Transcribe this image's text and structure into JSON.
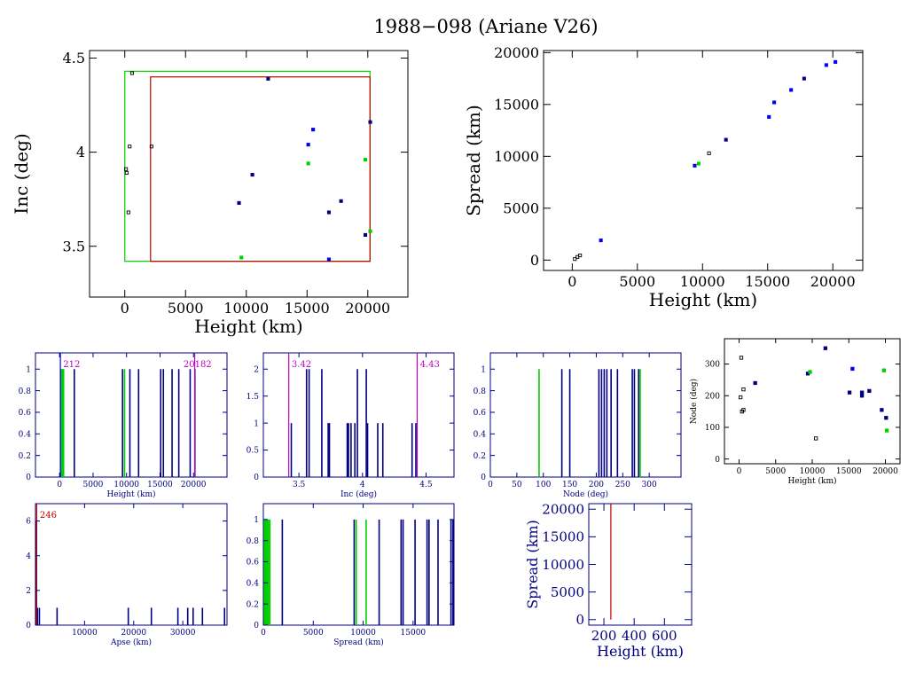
{
  "title": "1988−098 (Ariane V26)",
  "colors": {
    "black": "#000000",
    "navy": "#000080",
    "blue": "#0000ff",
    "green": "#00d000",
    "red": "#c00000",
    "magenta": "#c000c0"
  },
  "chart_data": [
    {
      "id": "inc-vs-height",
      "type": "scatter",
      "xlabel": "Height (km)",
      "ylabel": "Inc (deg)",
      "xlim": [
        -2900,
        23300
      ],
      "ylim": [
        3.23,
        4.54
      ],
      "xticks": [
        0,
        5000,
        10000,
        15000,
        20000
      ],
      "yticks": [
        3.5,
        4,
        4.5
      ],
      "ytick_labels": [
        "3.5",
        "4",
        "4.5"
      ],
      "regions": [
        {
          "color": "green",
          "x": [
            0,
            20182
          ],
          "y": [
            3.42,
            4.43
          ]
        },
        {
          "color": "red",
          "x": [
            2120,
            20182
          ],
          "y": [
            3.42,
            4.4
          ]
        }
      ],
      "points": [
        {
          "x": 600,
          "y": 4.42,
          "c": "black"
        },
        {
          "x": 11800,
          "y": 4.39,
          "c": "navy"
        },
        {
          "x": 15500,
          "y": 4.12,
          "c": "blue"
        },
        {
          "x": 20200,
          "y": 4.16,
          "c": "navy"
        },
        {
          "x": 400,
          "y": 4.03,
          "c": "black"
        },
        {
          "x": 2200,
          "y": 4.03,
          "c": "black"
        },
        {
          "x": 15100,
          "y": 4.04,
          "c": "blue"
        },
        {
          "x": 100,
          "y": 3.91,
          "c": "black"
        },
        {
          "x": 150,
          "y": 3.89,
          "c": "black"
        },
        {
          "x": 10500,
          "y": 3.88,
          "c": "navy"
        },
        {
          "x": 15100,
          "y": 3.94,
          "c": "green"
        },
        {
          "x": 19800,
          "y": 3.96,
          "c": "green"
        },
        {
          "x": 9400,
          "y": 3.73,
          "c": "navy"
        },
        {
          "x": 17800,
          "y": 3.74,
          "c": "navy"
        },
        {
          "x": 300,
          "y": 3.68,
          "c": "black"
        },
        {
          "x": 16800,
          "y": 3.68,
          "c": "navy"
        },
        {
          "x": 19800,
          "y": 3.56,
          "c": "navy"
        },
        {
          "x": 20200,
          "y": 3.58,
          "c": "green"
        },
        {
          "x": 9600,
          "y": 3.44,
          "c": "green"
        },
        {
          "x": 16800,
          "y": 3.43,
          "c": "blue"
        }
      ]
    },
    {
      "id": "spread-vs-height",
      "type": "scatter",
      "xlabel": "Height (km)",
      "ylabel": "Spread (km)",
      "xlim": [
        -2200,
        22300
      ],
      "ylim": [
        -1000,
        20200
      ],
      "xticks": [
        0,
        5000,
        10000,
        15000,
        20000
      ],
      "yticks": [
        0,
        5000,
        10000,
        15000,
        20000
      ],
      "points": [
        {
          "x": 200,
          "y": 100,
          "c": "black"
        },
        {
          "x": 400,
          "y": 300,
          "c": "black"
        },
        {
          "x": 600,
          "y": 450,
          "c": "black"
        },
        {
          "x": 2200,
          "y": 1900,
          "c": "blue"
        },
        {
          "x": 9400,
          "y": 9100,
          "c": "blue"
        },
        {
          "x": 9700,
          "y": 9300,
          "c": "green"
        },
        {
          "x": 10500,
          "y": 10300,
          "c": "black"
        },
        {
          "x": 11800,
          "y": 11600,
          "c": "navy"
        },
        {
          "x": 15100,
          "y": 13800,
          "c": "blue"
        },
        {
          "x": 15500,
          "y": 15200,
          "c": "blue"
        },
        {
          "x": 16800,
          "y": 16400,
          "c": "blue"
        },
        {
          "x": 17800,
          "y": 17500,
          "c": "navy"
        },
        {
          "x": 19500,
          "y": 18800,
          "c": "blue"
        },
        {
          "x": 20200,
          "y": 19100,
          "c": "blue"
        }
      ]
    },
    {
      "id": "hist-height",
      "type": "bar",
      "xlabel": "Height (km)",
      "ylabel": "",
      "xlim": [
        -3600,
        25000
      ],
      "ylim": [
        0,
        1.15
      ],
      "xticks": [
        0,
        5000,
        10000,
        15000,
        20000
      ],
      "yticks": [
        0,
        0.2,
        0.4,
        0.6,
        0.8,
        1
      ],
      "ytick_labels": [
        "0",
        "0.2",
        "0.4",
        "0.6",
        "0.8",
        "1"
      ],
      "bars": [
        {
          "x": 200,
          "h": 1,
          "c": "navy"
        },
        {
          "x": 300,
          "h": 1,
          "c": "green"
        },
        {
          "x": 400,
          "h": 1,
          "c": "green"
        },
        {
          "x": 500,
          "h": 1,
          "c": "green"
        },
        {
          "x": 600,
          "h": 1,
          "c": "green"
        },
        {
          "x": 2200,
          "h": 1,
          "c": "navy"
        },
        {
          "x": 9400,
          "h": 1,
          "c": "navy"
        },
        {
          "x": 9700,
          "h": 1,
          "c": "green"
        },
        {
          "x": 10500,
          "h": 1,
          "c": "navy"
        },
        {
          "x": 11800,
          "h": 1,
          "c": "navy"
        },
        {
          "x": 15100,
          "h": 1,
          "c": "navy"
        },
        {
          "x": 15500,
          "h": 1,
          "c": "navy"
        },
        {
          "x": 16800,
          "h": 1,
          "c": "navy"
        },
        {
          "x": 17800,
          "h": 1,
          "c": "navy"
        },
        {
          "x": 19500,
          "h": 1,
          "c": "navy"
        },
        {
          "x": 20200,
          "h": 1,
          "c": "navy"
        }
      ],
      "vlines": [
        {
          "x": 120,
          "c": "blue"
        },
        {
          "x": 20182,
          "c": "magenta"
        }
      ],
      "labels": [
        {
          "text": "212",
          "x": 1800,
          "c": "magenta"
        },
        {
          "text": "20182",
          "x": 20600,
          "c": "magenta"
        }
      ]
    },
    {
      "id": "hist-inc",
      "type": "bar",
      "xlabel": "Inc (deg)",
      "ylabel": "",
      "xlim": [
        3.22,
        4.72
      ],
      "ylim": [
        0,
        2.3
      ],
      "xticks": [
        3.5,
        4,
        4.5
      ],
      "xtick_labels": [
        "3.5",
        "4",
        "4.5"
      ],
      "yticks": [
        0,
        0.5,
        1,
        1.5,
        2
      ],
      "ytick_labels": [
        "0",
        "0.5",
        "1",
        "1.5",
        "2"
      ],
      "bars": [
        {
          "x": 3.44,
          "h": 1,
          "c": "navy"
        },
        {
          "x": 3.56,
          "h": 2,
          "c": "navy"
        },
        {
          "x": 3.58,
          "h": 2,
          "c": "navy"
        },
        {
          "x": 3.68,
          "h": 2,
          "c": "navy"
        },
        {
          "x": 3.73,
          "h": 1,
          "c": "navy"
        },
        {
          "x": 3.74,
          "h": 1,
          "c": "navy"
        },
        {
          "x": 3.88,
          "h": 1,
          "c": "navy"
        },
        {
          "x": 3.89,
          "h": 1,
          "c": "navy"
        },
        {
          "x": 3.91,
          "h": 1,
          "c": "navy"
        },
        {
          "x": 3.94,
          "h": 1,
          "c": "navy"
        },
        {
          "x": 3.96,
          "h": 2,
          "c": "navy"
        },
        {
          "x": 4.03,
          "h": 2,
          "c": "navy"
        },
        {
          "x": 4.04,
          "h": 1,
          "c": "navy"
        },
        {
          "x": 4.12,
          "h": 1,
          "c": "navy"
        },
        {
          "x": 4.16,
          "h": 1,
          "c": "navy"
        },
        {
          "x": 4.39,
          "h": 1,
          "c": "navy"
        },
        {
          "x": 4.42,
          "h": 1,
          "c": "navy"
        }
      ],
      "vlines": [
        {
          "x": 3.42,
          "c": "magenta"
        },
        {
          "x": 4.43,
          "c": "magenta"
        }
      ],
      "labels": [
        {
          "text": "3.42",
          "x": 3.52,
          "c": "magenta"
        },
        {
          "text": "4.43",
          "x": 4.53,
          "c": "magenta"
        }
      ]
    },
    {
      "id": "hist-node",
      "type": "bar",
      "xlabel": "Node (deg)",
      "ylabel": "",
      "xlim": [
        0,
        360
      ],
      "ylim": [
        0,
        1.15
      ],
      "xticks": [
        0,
        50,
        100,
        150,
        200,
        250,
        300
      ],
      "yticks": [
        0,
        0.2,
        0.4,
        0.6,
        0.8,
        1
      ],
      "ytick_labels": [
        "0",
        "0.2",
        "0.4",
        "0.6",
        "0.8",
        "1"
      ],
      "bars": [
        {
          "x": 92,
          "h": 1,
          "c": "green"
        },
        {
          "x": 135,
          "h": 1,
          "c": "navy"
        },
        {
          "x": 150,
          "h": 1,
          "c": "navy"
        },
        {
          "x": 205,
          "h": 1,
          "c": "navy"
        },
        {
          "x": 210,
          "h": 1,
          "c": "navy"
        },
        {
          "x": 215,
          "h": 1,
          "c": "navy"
        },
        {
          "x": 220,
          "h": 1,
          "c": "navy"
        },
        {
          "x": 228,
          "h": 1,
          "c": "navy"
        },
        {
          "x": 240,
          "h": 1,
          "c": "navy"
        },
        {
          "x": 268,
          "h": 1,
          "c": "navy"
        },
        {
          "x": 272,
          "h": 1,
          "c": "navy"
        },
        {
          "x": 280,
          "h": 1,
          "c": "navy"
        },
        {
          "x": 283,
          "h": 1,
          "c": "green"
        }
      ]
    },
    {
      "id": "node-vs-height",
      "type": "scatter",
      "xlabel": "Height (km)",
      "ylabel": "Node (deg)",
      "xlim": [
        -2000,
        22000
      ],
      "ylim": [
        -15,
        380
      ],
      "xticks": [
        0,
        5000,
        10000,
        15000,
        20000
      ],
      "yticks": [
        0,
        100,
        200,
        300
      ],
      "points": [
        {
          "x": 300,
          "y": 320,
          "c": "black"
        },
        {
          "x": 200,
          "y": 195,
          "c": "black"
        },
        {
          "x": 400,
          "y": 150,
          "c": "black"
        },
        {
          "x": 600,
          "y": 155,
          "c": "black"
        },
        {
          "x": 600,
          "y": 220,
          "c": "black"
        },
        {
          "x": 2200,
          "y": 240,
          "c": "navy"
        },
        {
          "x": 9400,
          "y": 270,
          "c": "navy"
        },
        {
          "x": 9700,
          "y": 275,
          "c": "green"
        },
        {
          "x": 10500,
          "y": 65,
          "c": "black"
        },
        {
          "x": 11800,
          "y": 350,
          "c": "navy"
        },
        {
          "x": 15100,
          "y": 210,
          "c": "navy"
        },
        {
          "x": 15500,
          "y": 285,
          "c": "blue"
        },
        {
          "x": 16800,
          "y": 200,
          "c": "navy"
        },
        {
          "x": 16800,
          "y": 210,
          "c": "navy"
        },
        {
          "x": 17800,
          "y": 215,
          "c": "navy"
        },
        {
          "x": 19500,
          "y": 155,
          "c": "navy"
        },
        {
          "x": 19800,
          "y": 280,
          "c": "green"
        },
        {
          "x": 20100,
          "y": 130,
          "c": "navy"
        },
        {
          "x": 20200,
          "y": 90,
          "c": "green"
        }
      ]
    },
    {
      "id": "hist-apse",
      "type": "bar",
      "xlabel": "Apse (km)",
      "ylabel": "",
      "xlim": [
        0,
        39000
      ],
      "ylim": [
        0,
        7
      ],
      "xticks": [
        10000,
        20000,
        30000
      ],
      "yticks": [
        0,
        2,
        4,
        6
      ],
      "ytick_labels": [
        "0",
        "2",
        "4",
        "6"
      ],
      "bars": [
        {
          "x": 150,
          "h": 6,
          "c": "navy"
        },
        {
          "x": 400,
          "h": 1,
          "c": "navy"
        },
        {
          "x": 800,
          "h": 1,
          "c": "navy"
        },
        {
          "x": 4400,
          "h": 1,
          "c": "navy"
        },
        {
          "x": 18900,
          "h": 1,
          "c": "navy"
        },
        {
          "x": 23600,
          "h": 1,
          "c": "navy"
        },
        {
          "x": 29000,
          "h": 1,
          "c": "navy"
        },
        {
          "x": 31000,
          "h": 1,
          "c": "navy"
        },
        {
          "x": 32100,
          "h": 1,
          "c": "navy"
        },
        {
          "x": 34000,
          "h": 1,
          "c": "navy"
        },
        {
          "x": 38500,
          "h": 1,
          "c": "navy"
        }
      ],
      "vlines": [
        {
          "x": 246,
          "c": "red"
        }
      ],
      "labels": [
        {
          "text": "246",
          "x": 2600,
          "c": "red"
        }
      ]
    },
    {
      "id": "hist-spread",
      "type": "bar",
      "xlabel": "Spread (km)",
      "ylabel": "",
      "xlim": [
        0,
        19100
      ],
      "ylim": [
        0,
        1.15
      ],
      "xticks": [
        0,
        5000,
        10000,
        15000
      ],
      "yticks": [
        0,
        0.2,
        0.4,
        0.6,
        0.8,
        1
      ],
      "ytick_labels": [
        "0",
        "0.2",
        "0.4",
        "0.6",
        "0.8",
        "1"
      ],
      "bars": [
        {
          "x": 100,
          "h": 1,
          "c": "green"
        },
        {
          "x": 200,
          "h": 1,
          "c": "green"
        },
        {
          "x": 300,
          "h": 1,
          "c": "green"
        },
        {
          "x": 400,
          "h": 1,
          "c": "green"
        },
        {
          "x": 500,
          "h": 1,
          "c": "green"
        },
        {
          "x": 650,
          "h": 1,
          "c": "green"
        },
        {
          "x": 1900,
          "h": 1,
          "c": "navy"
        },
        {
          "x": 9100,
          "h": 1,
          "c": "navy"
        },
        {
          "x": 9300,
          "h": 1,
          "c": "green"
        },
        {
          "x": 10300,
          "h": 1,
          "c": "green"
        },
        {
          "x": 11600,
          "h": 1,
          "c": "navy"
        },
        {
          "x": 13800,
          "h": 1,
          "c": "navy"
        },
        {
          "x": 14000,
          "h": 1,
          "c": "navy"
        },
        {
          "x": 15200,
          "h": 1,
          "c": "navy"
        },
        {
          "x": 16400,
          "h": 1,
          "c": "navy"
        },
        {
          "x": 16600,
          "h": 1,
          "c": "navy"
        },
        {
          "x": 17500,
          "h": 1,
          "c": "navy"
        },
        {
          "x": 18800,
          "h": 1,
          "c": "navy"
        },
        {
          "x": 19000,
          "h": 1,
          "c": "navy"
        }
      ]
    },
    {
      "id": "spread-vs-height-low",
      "type": "line",
      "xlabel": "Height (km)",
      "ylabel": "Spread (km)",
      "xlim": [
        100,
        780
      ],
      "ylim": [
        -1000,
        21000
      ],
      "xticks": [
        200,
        400,
        600
      ],
      "yticks": [
        0,
        5000,
        10000,
        15000,
        20000
      ],
      "vlines": [
        {
          "x": 246,
          "c": "red",
          "y": [
            0,
            21000
          ]
        }
      ]
    }
  ]
}
